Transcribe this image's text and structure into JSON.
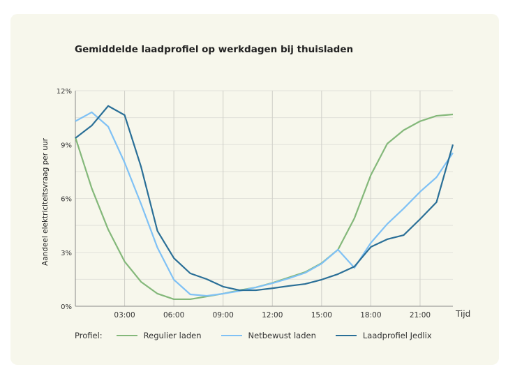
{
  "chart_data": {
    "type": "line",
    "title": "Gemiddelde laadprofiel op werkdagen bij thuisladen",
    "ylabel": "Aandeel elektriciteitsvraag per uur",
    "xlabel": "Tijd",
    "x": [
      0,
      1,
      2,
      3,
      4,
      5,
      6,
      7,
      8,
      9,
      10,
      11,
      12,
      13,
      14,
      15,
      16,
      17,
      18,
      19,
      20,
      21,
      22,
      23
    ],
    "xticks": [
      {
        "value": 3,
        "label": "03:00"
      },
      {
        "value": 6,
        "label": "06:00"
      },
      {
        "value": 9,
        "label": "09:00"
      },
      {
        "value": 12,
        "label": "12:00"
      },
      {
        "value": 15,
        "label": "15:00"
      },
      {
        "value": 18,
        "label": "18:00"
      },
      {
        "value": 21,
        "label": "21:00"
      }
    ],
    "yticks": [
      {
        "value": 0,
        "label": "0%"
      },
      {
        "value": 3,
        "label": "3%"
      },
      {
        "value": 6,
        "label": "6%"
      },
      {
        "value": 9,
        "label": "9%"
      },
      {
        "value": 12,
        "label": "12%"
      }
    ],
    "ylim": [
      0,
      12
    ],
    "xlim": [
      0,
      23
    ],
    "grid": true,
    "legend_title": "Profiel:",
    "legend_placement": "bottom",
    "series": [
      {
        "name": "Regulier laden",
        "color": "#84b87a",
        "values": [
          9.4,
          6.56,
          4.27,
          2.49,
          1.36,
          0.7,
          0.39,
          0.39,
          0.54,
          0.7,
          0.89,
          1.05,
          1.3,
          1.6,
          1.9,
          2.4,
          3.15,
          4.9,
          7.3,
          9.05,
          9.8,
          10.3,
          10.6,
          10.68
        ]
      },
      {
        "name": "Netbewust laden",
        "color": "#7fc1f5",
        "values": [
          10.3,
          10.8,
          10.0,
          8.0,
          5.7,
          3.26,
          1.48,
          0.66,
          0.58,
          0.7,
          0.85,
          1.05,
          1.28,
          1.55,
          1.86,
          2.37,
          3.15,
          2.14,
          3.53,
          4.58,
          5.44,
          6.37,
          7.18,
          8.54
        ]
      },
      {
        "name": "Laadprofiel Jedlix",
        "color": "#2a6f97",
        "values": [
          9.36,
          10.06,
          11.15,
          10.64,
          7.77,
          4.19,
          2.68,
          1.83,
          1.51,
          1.09,
          0.89,
          0.89,
          1.0,
          1.13,
          1.24,
          1.48,
          1.79,
          2.21,
          3.3,
          3.73,
          3.96,
          4.85,
          5.79,
          9.0
        ]
      }
    ]
  }
}
